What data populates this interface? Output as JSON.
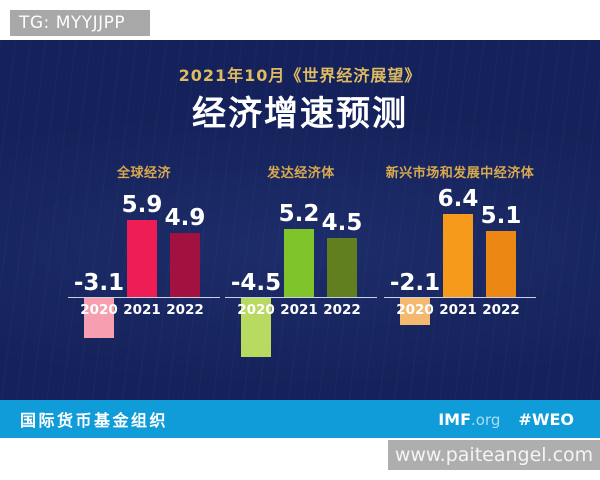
{
  "watermarks": {
    "top": "TG: MYYJJPP",
    "bottom": "www.paiteangel.com"
  },
  "header": {
    "subtitle": "2021年10月《世界经济展望》",
    "title": "经济增速预测"
  },
  "chart_data": {
    "type": "bar",
    "title": "经济增速预测",
    "subtitle": "2021年10月《世界经济展望》",
    "categories": [
      "2020",
      "2021",
      "2022"
    ],
    "groups": [
      {
        "name": "全球经济",
        "values": [
          -3.1,
          5.9,
          4.9
        ],
        "colors": [
          "#f79fb0",
          "#ef1d56",
          "#a31140"
        ]
      },
      {
        "name": "发达经济体",
        "values": [
          -4.5,
          5.2,
          4.5
        ],
        "colors": [
          "#b8da60",
          "#80c42c",
          "#617f1e"
        ]
      },
      {
        "name": "新兴市场和发展中经济体",
        "values": [
          -2.1,
          6.4,
          5.1
        ],
        "colors": [
          "#f4b96e",
          "#f59a1b",
          "#ec8713"
        ]
      }
    ],
    "value_labels": true,
    "baseline": 0,
    "grid": false,
    "legend": "none"
  },
  "footer": {
    "org_name": "国际货币基金组织",
    "site_bold": "IMF",
    "site_suffix": ".org",
    "hashtag": "#WEO"
  },
  "colors": {
    "background_navy": "#15215a",
    "footer_blue": "#0f9cd8",
    "subtitle_gold": "#debb60",
    "group_label_gold": "#d8a94e",
    "axis_line": "#dde3f0",
    "top_badge_gray": "#a8a8a8",
    "bottom_watermark_gray": "#aeaeae"
  }
}
